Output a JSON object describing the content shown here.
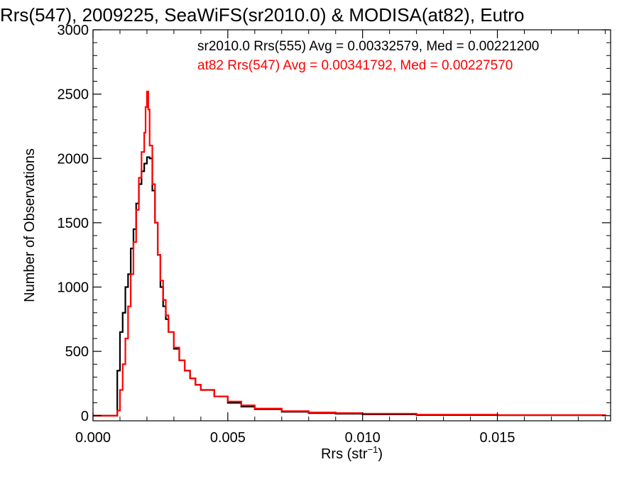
{
  "chart_data": {
    "type": "line",
    "title": "Rrs(547), 2009225, SeaWiFS(sr2010.0) & MODISA(at82), Eutro",
    "xlabel_main": "Rrs (str",
    "xlabel_sup": "−1",
    "xlabel_close": ")",
    "ylabel": "Number of Observations",
    "xlim": [
      0,
      0.0192
    ],
    "ylim": [
      -40,
      3000
    ],
    "xticks": [
      0.0,
      0.005,
      0.01,
      0.015
    ],
    "xtick_labels": [
      "0.000",
      "0.005",
      "0.010",
      "0.015"
    ],
    "yticks": [
      0,
      500,
      1000,
      1500,
      2000,
      2500,
      3000
    ],
    "ytick_labels": [
      "0",
      "500",
      "1000",
      "1500",
      "2000",
      "2500",
      "3000"
    ],
    "grid": false,
    "legend_position": "top-right",
    "series": [
      {
        "name": "sr2010.0 Rrs(555) Avg = 0.00332579, Med = 0.00221200",
        "color": "#000000",
        "step": true,
        "x": [
          0.0,
          0.0008,
          0.0009,
          0.001,
          0.0011,
          0.0012,
          0.0013,
          0.0014,
          0.0015,
          0.0016,
          0.0017,
          0.0018,
          0.0019,
          0.002,
          0.0021,
          0.0022,
          0.0023,
          0.0024,
          0.0025,
          0.0026,
          0.0027,
          0.0028,
          0.003,
          0.0032,
          0.0034,
          0.0036,
          0.0038,
          0.004,
          0.0045,
          0.005,
          0.0055,
          0.006,
          0.007,
          0.008,
          0.009,
          0.01,
          0.012,
          0.015,
          0.019
        ],
        "y": [
          0,
          0,
          350,
          650,
          800,
          1000,
          1100,
          1300,
          1450,
          1650,
          1800,
          1900,
          1960,
          2010,
          2000,
          1750,
          1500,
          1250,
          1000,
          850,
          750,
          650,
          520,
          430,
          350,
          290,
          240,
          200,
          150,
          100,
          70,
          50,
          30,
          20,
          15,
          10,
          5,
          3,
          0
        ]
      },
      {
        "name": "at82 Rrs(547) Avg = 0.00341792, Med = 0.00227570",
        "color": "#ff0000",
        "step": true,
        "x": [
          0.0,
          0.0008,
          0.0009,
          0.001,
          0.0011,
          0.0012,
          0.0013,
          0.0014,
          0.0015,
          0.0016,
          0.0017,
          0.0018,
          0.0019,
          0.00195,
          0.002,
          0.00205,
          0.0021,
          0.0022,
          0.0023,
          0.0024,
          0.0025,
          0.0026,
          0.0027,
          0.0028,
          0.003,
          0.0032,
          0.0034,
          0.0036,
          0.0038,
          0.004,
          0.0045,
          0.005,
          0.0055,
          0.006,
          0.007,
          0.008,
          0.009,
          0.01,
          0.012,
          0.015,
          0.019
        ],
        "y": [
          0,
          0,
          40,
          200,
          400,
          600,
          850,
          1100,
          1350,
          1600,
          1850,
          2050,
          2200,
          2400,
          2520,
          2380,
          2100,
          1800,
          1500,
          1250,
          1050,
          900,
          780,
          650,
          530,
          430,
          350,
          290,
          240,
          200,
          150,
          110,
          80,
          55,
          35,
          25,
          20,
          15,
          8,
          5,
          0
        ]
      }
    ]
  }
}
